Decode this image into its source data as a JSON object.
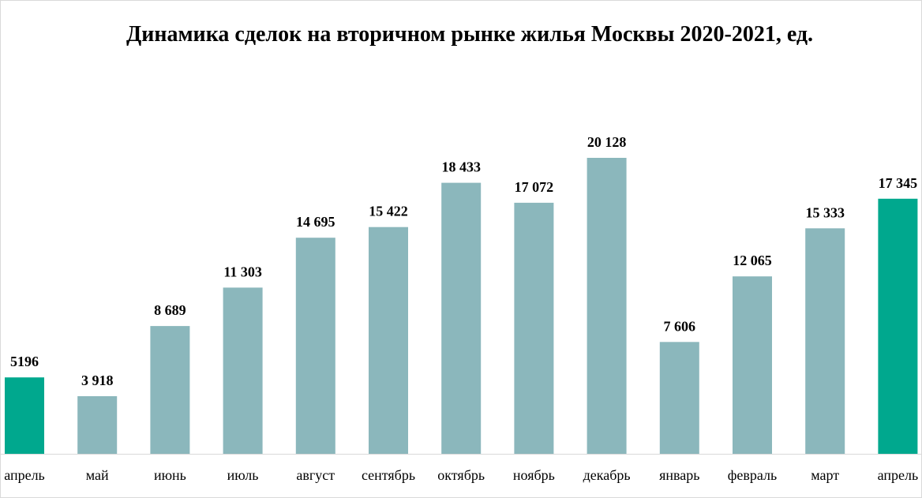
{
  "chart_data": {
    "type": "bar",
    "title": "Динамика сделок на вторичном рынке жилья Москвы 2020-2021, ед.",
    "xlabel": "",
    "ylabel": "",
    "ylim": [
      0,
      20128
    ],
    "grid": false,
    "legend": "none",
    "categories": [
      "апрель",
      "май",
      "июнь",
      "июль",
      "август",
      "сентябрь",
      "октябрь",
      "ноябрь",
      "декабрь",
      "январь",
      "февраль",
      "март",
      "апрель"
    ],
    "values": [
      5196,
      3918,
      8689,
      11303,
      14695,
      15422,
      18433,
      17072,
      20128,
      7606,
      12065,
      15333,
      17345
    ],
    "value_labels": [
      "5196",
      "3 918",
      "8 689",
      "11 303",
      "14 695",
      "15 422",
      "18 433",
      "17 072",
      "20 128",
      "7 606",
      "12 065",
      "15 333",
      "17 345"
    ],
    "bar_colors": [
      "#00a88e",
      "#8bb7bc",
      "#8bb7bc",
      "#8bb7bc",
      "#8bb7bc",
      "#8bb7bc",
      "#8bb7bc",
      "#8bb7bc",
      "#8bb7bc",
      "#8bb7bc",
      "#8bb7bc",
      "#8bb7bc",
      "#00a88e"
    ],
    "axis_color": "#d9d9d9"
  }
}
